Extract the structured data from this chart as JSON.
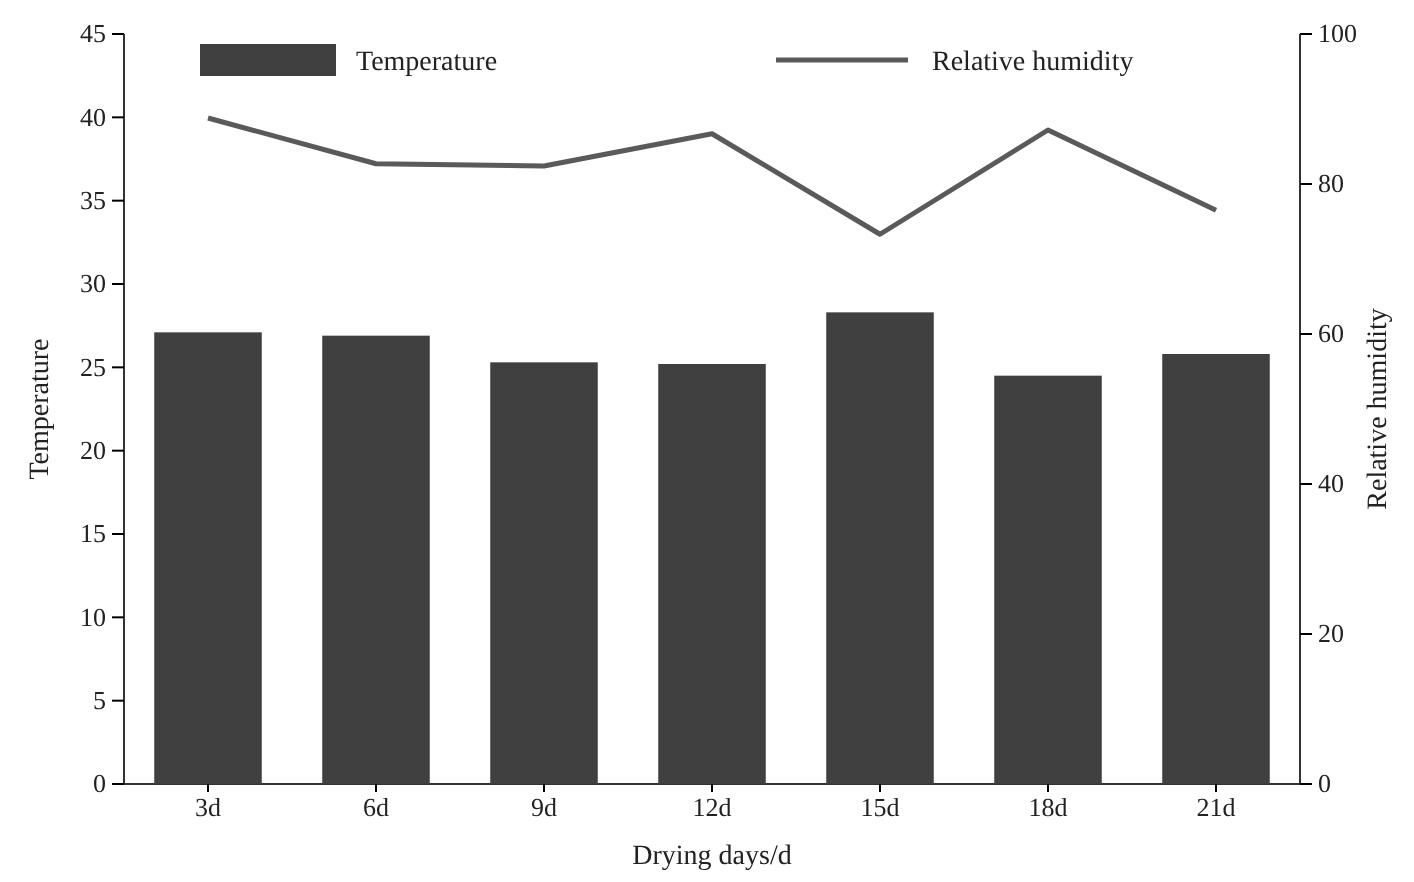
{
  "chart_data": {
    "type": "bar",
    "xlabel": "Drying days/d",
    "ylabel": "Temperature",
    "y2label": "Relative humidity",
    "categories": [
      "3d",
      "6d",
      "9d",
      "12d",
      "15d",
      "18d",
      "21d"
    ],
    "series": [
      {
        "name": "Temperature",
        "color": "#404040",
        "values": [
          27.1,
          26.9,
          25.3,
          25.2,
          28.3,
          24.5,
          25.8
        ]
      },
      {
        "name": "Relative humidity",
        "type": "line",
        "axis": "y2",
        "color": "#5a5a5a",
        "values": [
          88.8,
          82.7,
          82.4,
          86.7,
          73.3,
          87.2,
          76.5
        ]
      }
    ],
    "ylim": [
      0,
      45
    ],
    "yticks": [
      0,
      5,
      10,
      15,
      20,
      25,
      30,
      35,
      40,
      45
    ],
    "y2lim": [
      0,
      100
    ],
    "y2ticks": [
      0,
      20,
      40,
      60,
      80,
      100
    ],
    "legend": "top",
    "marker": "none",
    "line_style": "solid"
  }
}
